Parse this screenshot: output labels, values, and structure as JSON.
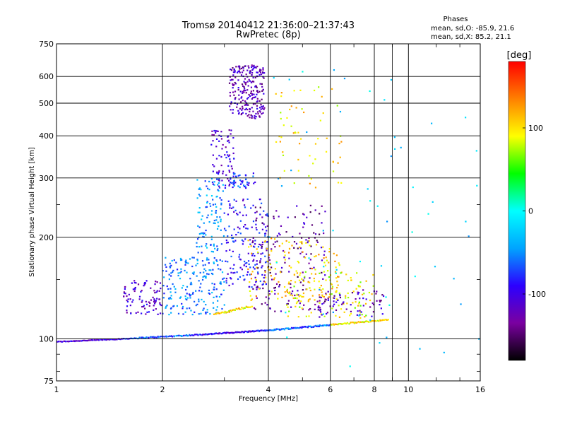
{
  "chart_data": {
    "type": "scatter",
    "title": "Tromsø 20140412 21:36:00–21:37:43",
    "subtitle": "RwPretec (8p)",
    "xlabel": "Frequency [MHz]",
    "ylabel": "Stationary phase Virtual Height [km]",
    "x_scale": "log",
    "y_scale": "log",
    "xlim": [
      1,
      16
    ],
    "ylim": [
      75,
      750
    ],
    "x_ticks": [
      1,
      2,
      4,
      6,
      8,
      10,
      16
    ],
    "x_tick_labels": [
      "1",
      "2",
      "4",
      "6",
      "8",
      "10",
      "16"
    ],
    "y_ticks": [
      75,
      100,
      200,
      300,
      400,
      500,
      600,
      750
    ],
    "y_tick_labels": [
      "75",
      "100",
      "200",
      "300",
      "400",
      "500",
      "600",
      "750"
    ],
    "grid": true,
    "stats": {
      "heading": "Phases",
      "line_o": "mean, sd,O: -85.9, 21.6",
      "line_x": "mean, sd,X:  85.2, 21.1"
    },
    "colorbar": {
      "label": "[deg]",
      "range": [
        -180,
        180
      ],
      "ticks": [
        100,
        0,
        -100
      ],
      "tick_labels": [
        "100",
        "0",
        "-100"
      ],
      "colormap": "rainbow",
      "colors": [
        "#000000",
        "#7a00a0",
        "#2c00ff",
        "#00a4ff",
        "#00ffff",
        "#00ff00",
        "#ffff00",
        "#ff8000",
        "#ff0000"
      ]
    },
    "clusters": [
      {
        "x": [
          1.0,
          1.55
        ],
        "y": [
          98,
          100
        ],
        "phase": -110,
        "n": 60,
        "kind": "trace"
      },
      {
        "x": [
          1.55,
          2.6
        ],
        "y": [
          100,
          103
        ],
        "phase": -70,
        "n": 70,
        "kind": "trace"
      },
      {
        "x": [
          2.6,
          4.0
        ],
        "y": [
          103,
          106
        ],
        "phase": -95,
        "n": 80,
        "kind": "trace"
      },
      {
        "x": [
          4.0,
          6.0
        ],
        "y": [
          106,
          110
        ],
        "phase": -60,
        "n": 70,
        "kind": "trace"
      },
      {
        "x": [
          6.0,
          8.8
        ],
        "y": [
          110,
          114
        ],
        "phase": 100,
        "n": 55,
        "kind": "trace"
      },
      {
        "x": [
          1.55,
          2.0
        ],
        "y": [
          118,
          150
        ],
        "phase": -110,
        "n": 90,
        "kind": "blob"
      },
      {
        "x": [
          2.0,
          3.0
        ],
        "y": [
          118,
          175
        ],
        "phase": -55,
        "n": 200,
        "kind": "blob"
      },
      {
        "x": [
          2.5,
          3.0
        ],
        "y": [
          180,
          300
        ],
        "phase": -50,
        "n": 110,
        "kind": "blob"
      },
      {
        "x": [
          2.75,
          3.2
        ],
        "y": [
          280,
          420
        ],
        "phase": -110,
        "n": 80,
        "kind": "blob"
      },
      {
        "x": [
          3.1,
          3.9
        ],
        "y": [
          450,
          650
        ],
        "phase": -120,
        "n": 230,
        "kind": "blob"
      },
      {
        "x": [
          3.1,
          3.7
        ],
        "y": [
          280,
          310
        ],
        "phase": -75,
        "n": 40,
        "kind": "blob"
      },
      {
        "x": [
          3.0,
          4.0
        ],
        "y": [
          140,
          260
        ],
        "phase": -90,
        "n": 170,
        "kind": "blob"
      },
      {
        "x": [
          3.6,
          5.8
        ],
        "y": [
          120,
          250
        ],
        "phase": -130,
        "n": 170,
        "kind": "blob"
      },
      {
        "x": [
          3.5,
          6.5
        ],
        "y": [
          130,
          200
        ],
        "phase": 110,
        "n": 140,
        "kind": "blob"
      },
      {
        "x": [
          2.8,
          3.6
        ],
        "y": [
          118,
          125
        ],
        "phase": 100,
        "n": 40,
        "kind": "trace"
      },
      {
        "x": [
          4.5,
          8.0
        ],
        "y": [
          115,
          160
        ],
        "phase": 90,
        "n": 110,
        "kind": "blob"
      },
      {
        "x": [
          5.5,
          8.5
        ],
        "y": [
          116,
          140
        ],
        "phase": -120,
        "n": 70,
        "kind": "blob"
      },
      {
        "x": [
          4.2,
          6.5
        ],
        "y": [
          280,
          560
        ],
        "phase": 100,
        "n": 60,
        "kind": "blob"
      },
      {
        "x": [
          4.0,
          16.0
        ],
        "y": [
          80,
          650
        ],
        "phase": -20,
        "n": 60,
        "kind": "scatter"
      }
    ]
  }
}
